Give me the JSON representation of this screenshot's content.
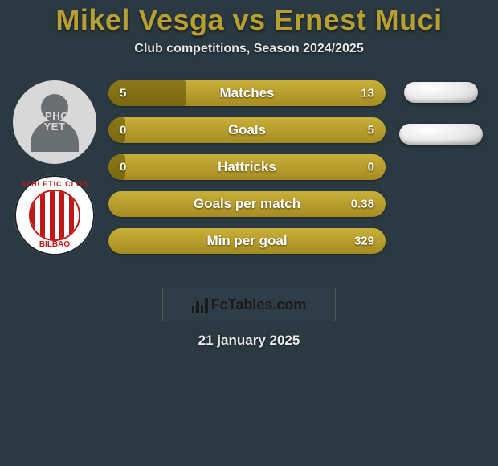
{
  "title": "Mikel Vesga vs Ernest Muci",
  "subtitle": "Club competitions, Season 2024/2025",
  "avatar_placeholder_line1": "NO PHOTO",
  "avatar_placeholder_line2": "YET",
  "crest_text_top": "ATHLETIC CLUB",
  "crest_text_bottom": "BILBAO",
  "bars": [
    {
      "left": "5",
      "label": "Matches",
      "right": "13",
      "fill_pct": 28
    },
    {
      "left": "0",
      "label": "Goals",
      "right": "5",
      "fill_pct": 6
    },
    {
      "left": "0",
      "label": "Hattricks",
      "right": "0",
      "fill_pct": 6
    },
    {
      "left": "",
      "label": "Goals per match",
      "right": "0.38",
      "fill_pct": 0
    },
    {
      "left": "",
      "label": "Min per goal",
      "right": "329",
      "fill_pct": 0
    }
  ],
  "ovals": [
    {
      "class": "oval1"
    },
    {
      "class": "oval2"
    }
  ],
  "badge_text": "FcTables.com",
  "date": "21 january 2025",
  "colors": {
    "bg": "#2a3942",
    "accent": "#b8a030",
    "bar_outer_top": "#c8b03a",
    "bar_outer_bot": "#a68c20",
    "bar_fill_top": "#8c7818",
    "bar_fill_bot": "#7a6810",
    "text": "#ffffff",
    "avatar_bg": "#d8d8d8",
    "avatar_fg": "#6a6f72",
    "crest_red": "#c01818"
  }
}
